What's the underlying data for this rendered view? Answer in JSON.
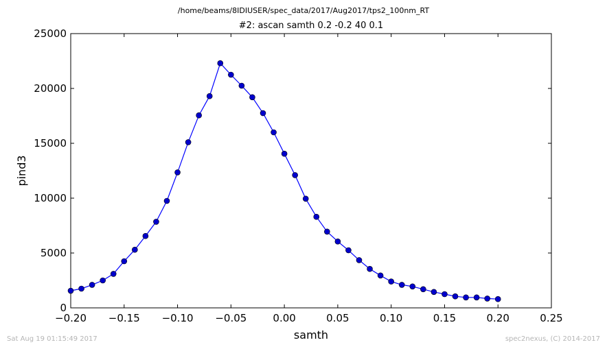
{
  "suptitle": "/home/beams/8IDIUSER/spec_data/2017/Aug2017/tps2_100nm_RT",
  "footer": {
    "left": "Sat Aug 19 01:15:49 2017",
    "right": "spec2nexus, (C) 2014-2017"
  },
  "chart_data": {
    "type": "line",
    "title": "#2: ascan  samth 0.2 -0.2  40 0.1",
    "xlabel": "samth",
    "ylabel": "pind3",
    "xlim": [
      -0.2,
      0.25
    ],
    "ylim": [
      0,
      25000
    ],
    "xticks": [
      -0.2,
      -0.15,
      -0.1,
      -0.05,
      0.0,
      0.05,
      0.1,
      0.15,
      0.2,
      0.25
    ],
    "xtick_labels": [
      "−0.20",
      "−0.15",
      "−0.10",
      "−0.05",
      "0.00",
      "0.05",
      "0.10",
      "0.15",
      "0.20",
      "0.25"
    ],
    "yticks": [
      0,
      5000,
      10000,
      15000,
      20000,
      25000
    ],
    "ytick_labels": [
      "0",
      "5000",
      "10000",
      "15000",
      "20000",
      "25000"
    ],
    "grid": false,
    "series_color": "#0000ff",
    "marker_color": "#0000cc",
    "x": [
      -0.2,
      -0.19,
      -0.18,
      -0.17,
      -0.16,
      -0.15,
      -0.14,
      -0.13,
      -0.12,
      -0.11,
      -0.1,
      -0.09,
      -0.08,
      -0.07,
      -0.06,
      -0.05,
      -0.04,
      -0.03,
      -0.02,
      -0.01,
      0.0,
      0.01,
      0.02,
      0.03,
      0.04,
      0.05,
      0.06,
      0.07,
      0.08,
      0.09,
      0.1,
      0.11,
      0.12,
      0.13,
      0.14,
      0.15,
      0.16,
      0.17,
      0.18,
      0.19,
      0.2
    ],
    "y": [
      1560,
      1750,
      2100,
      2500,
      3100,
      4250,
      5300,
      6550,
      7850,
      9750,
      12350,
      15100,
      17550,
      19300,
      22300,
      21250,
      20250,
      19200,
      17750,
      16000,
      14050,
      12100,
      9950,
      8300,
      6950,
      6050,
      5250,
      4350,
      3550,
      2950,
      2400,
      2100,
      1950,
      1700,
      1450,
      1250,
      1050,
      950,
      950,
      850,
      800
    ]
  }
}
